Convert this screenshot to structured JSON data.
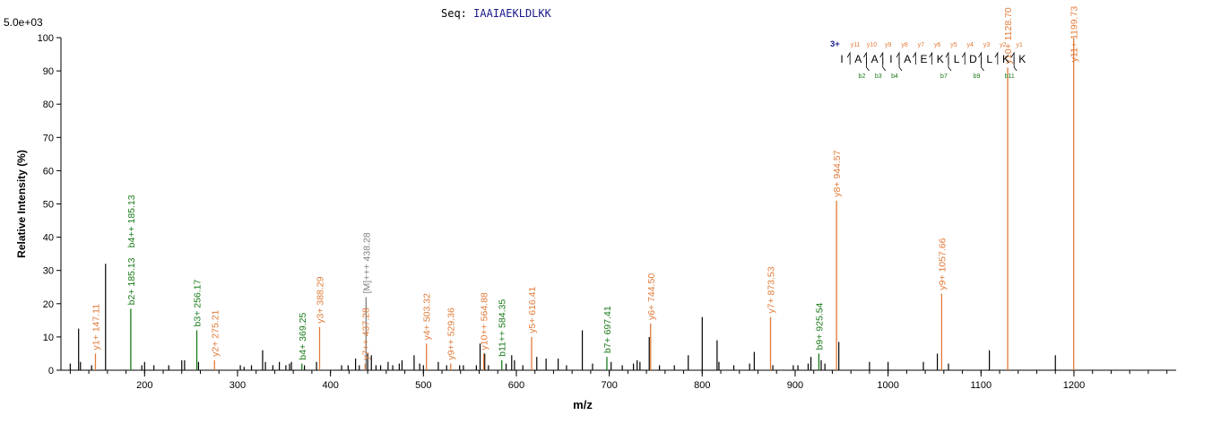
{
  "header": {
    "seq_prefix": "Seq:",
    "seq_value": "IAAIAEKLDLKK",
    "scale": "5.0e+03"
  },
  "chart_data": {
    "type": "bar",
    "xlabel": "m/z",
    "ylabel": "Relative   Intensity (%)",
    "xlim": [
      110,
      1310
    ],
    "ylim": [
      0,
      100
    ],
    "xticks": [
      200,
      300,
      400,
      500,
      600,
      700,
      800,
      900,
      1000,
      1100,
      1200
    ],
    "yticks": [
      0,
      10,
      20,
      30,
      40,
      50,
      60,
      70,
      80,
      90,
      100
    ],
    "colors": {
      "y": "#e07b39",
      "b": "#1a7a1a",
      "precursor": "#808080",
      "unassigned": "#000000",
      "charge": "#1a1a8c"
    },
    "annotated_peaks": [
      {
        "mz": 147.11,
        "intensity": 5,
        "label": "y1+ 147.11",
        "ion": "y"
      },
      {
        "mz": 185.13,
        "intensity": 18.5,
        "label": "b2+ 185.13",
        "ion": "b"
      },
      {
        "mz": 185.13,
        "intensity": 18.5,
        "label": "b4++ 185.13",
        "ion": "b"
      },
      {
        "mz": 256.17,
        "intensity": 12,
        "label": "b3+ 256.17",
        "ion": "b"
      },
      {
        "mz": 275.21,
        "intensity": 3,
        "label": "y2+ 275.21",
        "ion": "y"
      },
      {
        "mz": 369.25,
        "intensity": 2,
        "label": "b4+ 369.25",
        "ion": "b"
      },
      {
        "mz": 388.29,
        "intensity": 13,
        "label": "y3+ 388.29",
        "ion": "y"
      },
      {
        "mz": 437.28,
        "intensity": 2,
        "label": "y7++ 437.28",
        "ion": "y"
      },
      {
        "mz": 438.28,
        "intensity": 22,
        "label": "[M]+++ 438.28",
        "ion": "precursor"
      },
      {
        "mz": 503.32,
        "intensity": 8,
        "label": "y4+ 503.32",
        "ion": "y"
      },
      {
        "mz": 529.36,
        "intensity": 2,
        "label": "y9++ 529.36",
        "ion": "y"
      },
      {
        "mz": 564.88,
        "intensity": 5,
        "label": "y10++ 564.88",
        "ion": "y"
      },
      {
        "mz": 584.35,
        "intensity": 3,
        "label": "b11++ 584.35",
        "ion": "b"
      },
      {
        "mz": 616.41,
        "intensity": 10,
        "label": "y5+ 616.41",
        "ion": "y"
      },
      {
        "mz": 697.41,
        "intensity": 4,
        "label": "b7+ 697.41",
        "ion": "b"
      },
      {
        "mz": 744.5,
        "intensity": 14,
        "label": "y6+ 744.50",
        "ion": "y"
      },
      {
        "mz": 873.53,
        "intensity": 16,
        "label": "y7+ 873.53",
        "ion": "y"
      },
      {
        "mz": 925.54,
        "intensity": 5,
        "label": "b9+ 925.54",
        "ion": "b"
      },
      {
        "mz": 944.57,
        "intensity": 51,
        "label": "y8+ 944.57",
        "ion": "y"
      },
      {
        "mz": 1057.66,
        "intensity": 23,
        "label": "y9+ 1057.66",
        "ion": "y"
      },
      {
        "mz": 1128.7,
        "intensity": 91,
        "label": "y10+ 1128.70",
        "ion": "y"
      },
      {
        "mz": 1199.73,
        "intensity": 100,
        "label": "y11+ 1199.73",
        "ion": "y"
      }
    ],
    "unlabeled_peaks": [
      [
        120,
        2
      ],
      [
        129,
        12.5
      ],
      [
        131,
        2.5
      ],
      [
        143,
        1.5
      ],
      [
        158,
        32
      ],
      [
        197,
        1.5
      ],
      [
        200,
        2.5
      ],
      [
        210,
        1.5
      ],
      [
        226,
        1.5
      ],
      [
        240,
        3
      ],
      [
        243,
        3
      ],
      [
        258,
        2.5
      ],
      [
        303,
        1.5
      ],
      [
        307,
        1
      ],
      [
        315,
        1.5
      ],
      [
        327,
        6
      ],
      [
        330,
        2.5
      ],
      [
        338,
        1.5
      ],
      [
        345,
        2.5
      ],
      [
        352,
        1.5
      ],
      [
        356,
        2
      ],
      [
        358,
        2.5
      ],
      [
        372,
        1.5
      ],
      [
        385,
        2.5
      ],
      [
        412,
        1.5
      ],
      [
        419,
        1.5
      ],
      [
        427,
        3.5
      ],
      [
        431,
        1.5
      ],
      [
        440,
        5
      ],
      [
        444,
        4.5
      ],
      [
        449,
        1.5
      ],
      [
        454,
        1.5
      ],
      [
        462,
        2.5
      ],
      [
        467,
        1.5
      ],
      [
        474,
        2
      ],
      [
        477,
        3
      ],
      [
        490,
        4.5
      ],
      [
        496,
        2
      ],
      [
        500,
        1.5
      ],
      [
        516,
        2.5
      ],
      [
        525,
        1.5
      ],
      [
        539,
        1.5
      ],
      [
        543,
        1.5
      ],
      [
        557,
        1.5
      ],
      [
        561,
        8
      ],
      [
        566,
        5
      ],
      [
        570,
        1.5
      ],
      [
        589,
        2
      ],
      [
        595,
        4.5
      ],
      [
        598,
        3
      ],
      [
        607,
        1.5
      ],
      [
        622,
        4
      ],
      [
        632,
        3.5
      ],
      [
        645,
        3.5
      ],
      [
        654,
        1.5
      ],
      [
        671,
        12
      ],
      [
        682,
        2
      ],
      [
        702,
        2.5
      ],
      [
        714,
        1.5
      ],
      [
        726,
        2
      ],
      [
        730,
        3
      ],
      [
        733,
        2.5
      ],
      [
        743,
        10
      ],
      [
        754,
        1.5
      ],
      [
        770,
        1.5
      ],
      [
        785,
        4.5
      ],
      [
        800,
        16
      ],
      [
        816,
        9
      ],
      [
        818,
        2.5
      ],
      [
        834,
        1.5
      ],
      [
        851,
        2
      ],
      [
        856,
        5.5
      ],
      [
        876,
        1.5
      ],
      [
        898,
        1.5
      ],
      [
        903,
        1.5
      ],
      [
        914,
        2
      ],
      [
        917,
        4
      ],
      [
        928,
        3
      ],
      [
        932,
        2
      ],
      [
        947,
        8.5
      ],
      [
        980,
        2.5
      ],
      [
        1000,
        2.5
      ],
      [
        1038,
        2.5
      ],
      [
        1053,
        5
      ],
      [
        1065,
        2
      ],
      [
        1109,
        6
      ],
      [
        1180,
        4.5
      ]
    ],
    "sequence_diagram": {
      "charge": "3+",
      "residues": [
        "I",
        "A",
        "A",
        "I",
        "A",
        "E",
        "K",
        "L",
        "D",
        "L",
        "K",
        "K"
      ],
      "y_ions": [
        "y11",
        "y10",
        "y9",
        "y8",
        "y7",
        "y6",
        "y5",
        "y4",
        "y3",
        "y2",
        "y1"
      ],
      "y_cleavage_after": [
        1,
        2,
        3,
        4,
        5,
        6,
        7,
        8,
        9,
        10,
        11
      ],
      "b_ions": [
        "b2",
        "b3",
        "b4",
        "b7",
        "b9",
        "b11"
      ],
      "b_cleavage_after": [
        2,
        3,
        4,
        7,
        9,
        11
      ]
    }
  }
}
